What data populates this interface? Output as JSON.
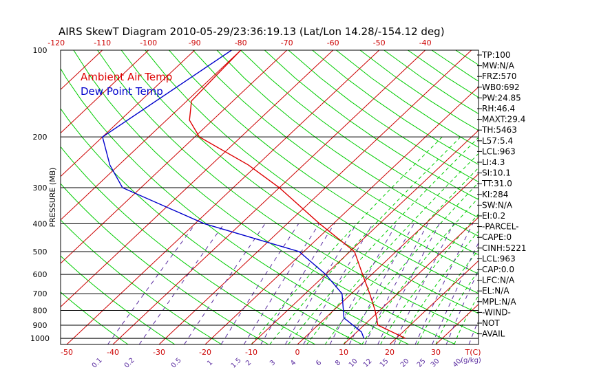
{
  "chart_data": {
    "type": "line",
    "title": "AIRS SkewT Diagram 2010-05-29/23:36:19.13 (Lat/Lon 14.28/-154.12 deg)",
    "ylabel": "PRESSURE (MB)",
    "pressure_ticks": [
      100,
      200,
      300,
      400,
      500,
      600,
      700,
      800,
      900,
      1000
    ],
    "top_temp_ticks": [
      "-120",
      "-110",
      "-100",
      "-90",
      "-80",
      "-70",
      "-60",
      "-50",
      "-40"
    ],
    "bottom_temp_ticks": [
      "-50",
      "-40",
      "-30",
      "-20",
      "-10",
      "0",
      "10",
      "20",
      "30"
    ],
    "bottom_axis_unit": "T(C)",
    "mixing_ratio_ticks": [
      "0.1",
      "0.2",
      "0.5",
      "1",
      "1.5",
      "2",
      "3",
      "4",
      "6",
      "8",
      "10",
      "12",
      "15",
      "20",
      "25",
      "30",
      "40"
    ],
    "mixing_ratio_unit": "(g/kg)",
    "legend": [
      {
        "name": "Ambient Air Temp",
        "color": "#dd0000"
      },
      {
        "name": "Dew Point Temp",
        "color": "#0000cc"
      }
    ],
    "series": [
      {
        "name": "Ambient Air Temp",
        "color": "#dd0000",
        "points": [
          [
            100,
            -80
          ],
          [
            150,
            -79
          ],
          [
            175,
            -75
          ],
          [
            200,
            -69
          ],
          [
            250,
            -52
          ],
          [
            300,
            -40
          ],
          [
            400,
            -23
          ],
          [
            500,
            -9
          ],
          [
            600,
            -2
          ],
          [
            700,
            4
          ],
          [
            800,
            9
          ],
          [
            900,
            13
          ],
          [
            1000,
            22
          ]
        ]
      },
      {
        "name": "Dew Point Temp",
        "color": "#0000cc",
        "points": [
          [
            100,
            -82
          ],
          [
            200,
            -90
          ],
          [
            250,
            -82
          ],
          [
            300,
            -74
          ],
          [
            400,
            -48
          ],
          [
            500,
            -21
          ],
          [
            600,
            -10
          ],
          [
            700,
            -2
          ],
          [
            850,
            4
          ],
          [
            950,
            11
          ],
          [
            1000,
            13
          ]
        ]
      }
    ],
    "indices": [
      "TP:100",
      "MW:N/A",
      "FRZ:570",
      "WB0:692",
      "PW:24.85",
      "RH:46.4",
      "MAXT:29.4",
      "TH:5463",
      "L57:5.4",
      "LCL:963",
      "LI:4.3",
      "SI:10.1",
      "TT:31.0",
      "KI:284",
      "SW:N/A",
      "EI:0.2",
      "-PARCEL-",
      "CAPE:0",
      "CINH:5221",
      "LCL:963",
      "CAP:0.0",
      "LFC:N/A",
      "EL:N/A",
      "MPL:N/A",
      "-WIND-",
      "NOT",
      "AVAIL"
    ],
    "grid": true,
    "colors": {
      "isotherm": "#cc0000",
      "dry_adiabat": "#00cc00",
      "moist_adiabat": "#00cc00",
      "mixing_ratio": "#5a2ca0",
      "isobar": "#000000"
    }
  }
}
